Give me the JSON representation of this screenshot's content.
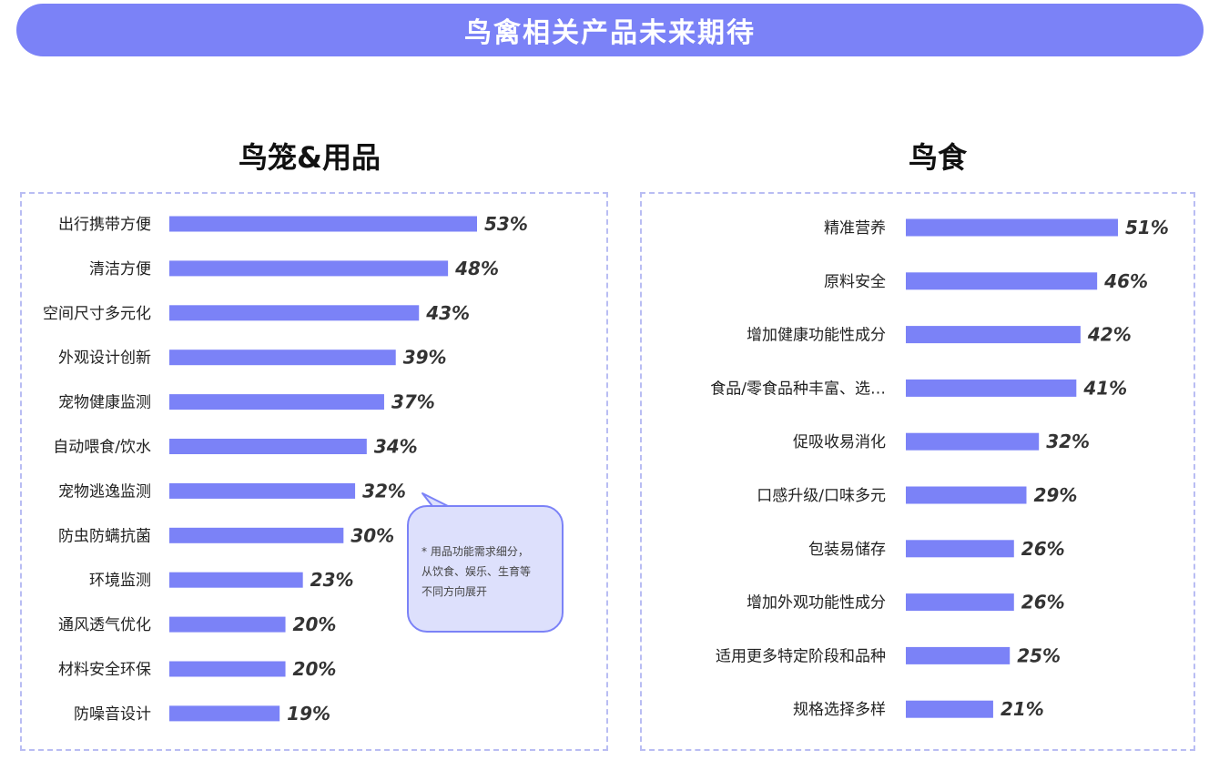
{
  "header": {
    "title": "鸟禽相关产品未来期待"
  },
  "colors": {
    "bar": "#7b82f7",
    "banner": "#7b82f7",
    "note_bg": "#dde0fc"
  },
  "note": {
    "line1": "* 用品功能需求细分，",
    "line2": "从饮食、娱乐、生育等",
    "line3": "不同方向展开"
  },
  "chart_data": [
    {
      "type": "bar",
      "orientation": "horizontal",
      "title": "鸟笼&用品",
      "categories": [
        "出行携带方便",
        "清洁方便",
        "空间尺寸多元化",
        "外观设计创新",
        "宠物健康监测",
        "自动喂食/饮水",
        "宠物逃逸监测",
        "防虫防螨抗菌",
        "环境监测",
        "通风透气优化",
        "材料安全环保",
        "防噪音设计"
      ],
      "values": [
        53,
        48,
        43,
        39,
        37,
        34,
        32,
        30,
        23,
        20,
        20,
        19
      ],
      "value_labels": [
        "53%",
        "48%",
        "43%",
        "39%",
        "37%",
        "34%",
        "32%",
        "30%",
        "23%",
        "20%",
        "20%",
        "19%"
      ],
      "xlim": [
        0,
        53
      ]
    },
    {
      "type": "bar",
      "orientation": "horizontal",
      "title": "鸟食",
      "categories": [
        "精准营养",
        "原料安全",
        "增加健康功能性成分",
        "食品/零食品种丰富、选…",
        "促吸收易消化",
        "口感升级/口味多元",
        "包装易储存",
        "增加外观功能性成分",
        "适用更多特定阶段和品种",
        "规格选择多样"
      ],
      "values": [
        51,
        46,
        42,
        41,
        32,
        29,
        26,
        26,
        25,
        21
      ],
      "value_labels": [
        "51%",
        "46%",
        "42%",
        "41%",
        "32%",
        "29%",
        "26%",
        "26%",
        "25%",
        "21%"
      ],
      "xlim": [
        0,
        51
      ]
    }
  ]
}
